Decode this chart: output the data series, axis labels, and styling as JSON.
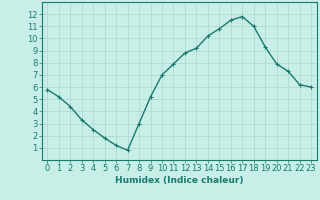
{
  "x": [
    0,
    1,
    2,
    3,
    4,
    5,
    6,
    7,
    8,
    9,
    10,
    11,
    12,
    13,
    14,
    15,
    16,
    17,
    18,
    19,
    20,
    21,
    22,
    23
  ],
  "y": [
    5.8,
    5.2,
    4.4,
    3.3,
    2.5,
    1.8,
    1.2,
    0.8,
    3.0,
    5.2,
    7.0,
    7.9,
    8.8,
    9.2,
    10.2,
    10.8,
    11.5,
    11.8,
    11.0,
    9.3,
    7.9,
    7.3,
    6.2,
    6.0
  ],
  "line_color": "#1a7a6e",
  "marker": "+",
  "marker_size": 3,
  "background_color": "#c8eee8",
  "grid_color": "#b0d4ce",
  "xlabel": "Humidex (Indice chaleur)",
  "xlabel_fontsize": 6.5,
  "tick_fontsize": 6,
  "ylim": [
    0,
    13
  ],
  "xlim": [
    -0.5,
    23.5
  ],
  "yticks": [
    1,
    2,
    3,
    4,
    5,
    6,
    7,
    8,
    9,
    10,
    11,
    12
  ],
  "xticks": [
    0,
    1,
    2,
    3,
    4,
    5,
    6,
    7,
    8,
    9,
    10,
    11,
    12,
    13,
    14,
    15,
    16,
    17,
    18,
    19,
    20,
    21,
    22,
    23
  ],
  "xtick_labels": [
    "0",
    "1",
    "2",
    "3",
    "4",
    "5",
    "6",
    "7",
    "8",
    "9",
    "10",
    "11",
    "12",
    "13",
    "14",
    "15",
    "16",
    "17",
    "18",
    "19",
    "20",
    "21",
    "22",
    "23"
  ],
  "line_width": 1.0,
  "axis_color": "#1a7a6e",
  "spine_color": "#1a7a6e"
}
